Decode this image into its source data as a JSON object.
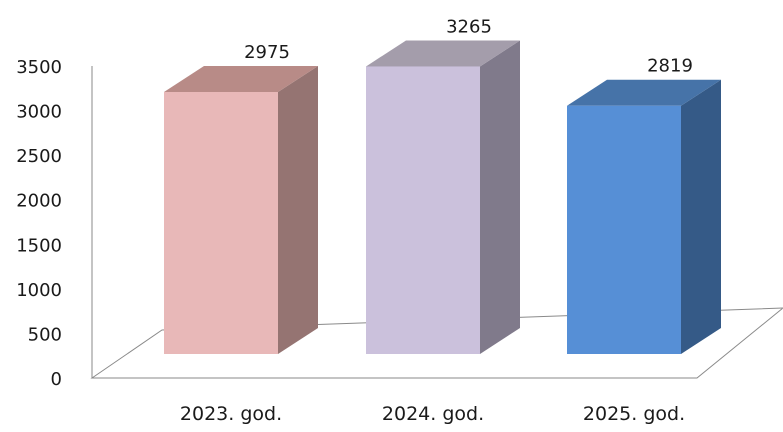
{
  "chart_data": {
    "type": "bar",
    "title": "",
    "xlabel": "",
    "ylabel": "",
    "categories": [
      "2023. god.",
      "2024. god.",
      "2025. god."
    ],
    "values": [
      2975,
      3265,
      2819
    ],
    "data_labels": [
      "2975",
      "3265",
      "2819"
    ],
    "ylim": [
      0,
      3500
    ],
    "yticks": [
      0,
      500,
      1000,
      1500,
      2000,
      2500,
      3000,
      3500
    ],
    "grid": false,
    "legend": "none",
    "style": "3d-column",
    "bar_colors": [
      {
        "front": "#e8b8b8",
        "side": "#957472",
        "top": "#b88b87"
      },
      {
        "front": "#cbc1dc",
        "side": "#807a8b",
        "top": "#a49dab"
      },
      {
        "front": "#568fd6",
        "side": "#355a87",
        "top": "#4673a8"
      }
    ]
  }
}
